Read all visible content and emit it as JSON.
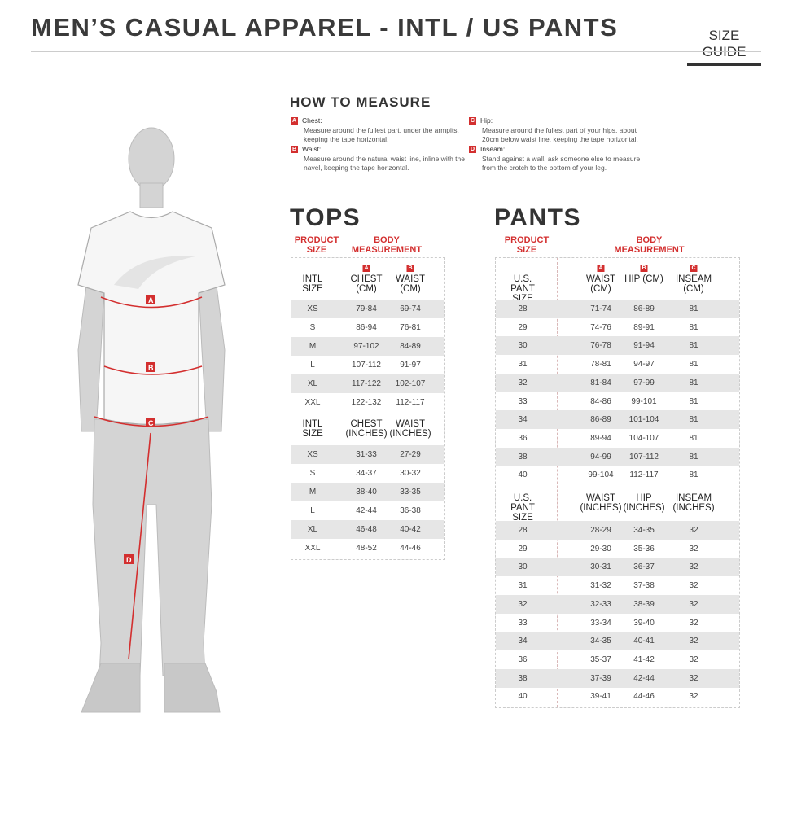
{
  "header": {
    "title": "MEN’S CASUAL APPAREL - INTL / US PANTS",
    "size_guide": "SIZE GUIDE"
  },
  "measure": {
    "title": "HOW TO MEASURE",
    "items": [
      {
        "letter": "A",
        "label": "Chest:",
        "desc": "Measure around the fullest part, under the armpits, keeping the tape horizontal."
      },
      {
        "letter": "B",
        "label": "Waist:",
        "desc": "Measure around the natural waist line, inline with the navel, keeping the tape horizontal."
      },
      {
        "letter": "C",
        "label": "Hip:",
        "desc": "Measure around the fullest part of your hips, about 20cm below waist line, keeping the tape horizontal."
      },
      {
        "letter": "D",
        "label": "Inseam:",
        "desc": "Stand against a wall, ask someone else to measure from the crotch to the bottom of your leg."
      }
    ]
  },
  "colors": {
    "accent": "#d32f2f",
    "row_alt": "#e6e6e6"
  },
  "tops": {
    "title": "TOPS",
    "product_size": "PRODUCT SIZE",
    "body_measurement": "BODY MEASUREMENT",
    "cm": {
      "headers": [
        "INTL SIZE",
        "CHEST (CM)",
        "WAIST (CM)"
      ],
      "letters": [
        "",
        "A",
        "B"
      ],
      "rows": [
        [
          "XS",
          "79-84",
          "69-74"
        ],
        [
          "S",
          "86-94",
          "76-81"
        ],
        [
          "M",
          "97-102",
          "84-89"
        ],
        [
          "L",
          "107-112",
          "91-97"
        ],
        [
          "XL",
          "117-122",
          "102-107"
        ],
        [
          "XXL",
          "122-132",
          "112-117"
        ]
      ]
    },
    "inches": {
      "headers": [
        "INTL SIZE",
        "CHEST (INCHES)",
        "WAIST (INCHES)"
      ],
      "rows": [
        [
          "XS",
          "31-33",
          "27-29"
        ],
        [
          "S",
          "34-37",
          "30-32"
        ],
        [
          "M",
          "38-40",
          "33-35"
        ],
        [
          "L",
          "42-44",
          "36-38"
        ],
        [
          "XL",
          "46-48",
          "40-42"
        ],
        [
          "XXL",
          "48-52",
          "44-46"
        ]
      ]
    }
  },
  "pants": {
    "title": "PANTS",
    "product_size": "PRODUCT SIZE",
    "body_measurement": "BODY MEASUREMENT",
    "cm": {
      "headers": [
        "U.S. PANT SIZE",
        "WAIST (CM)",
        "HIP (CM)",
        "INSEAM (CM)"
      ],
      "letters": [
        "",
        "A",
        "B",
        "C"
      ],
      "rows": [
        [
          "28",
          "71-74",
          "86-89",
          "81"
        ],
        [
          "29",
          "74-76",
          "89-91",
          "81"
        ],
        [
          "30",
          "76-78",
          "91-94",
          "81"
        ],
        [
          "31",
          "78-81",
          "94-97",
          "81"
        ],
        [
          "32",
          "81-84",
          "97-99",
          "81"
        ],
        [
          "33",
          "84-86",
          "99-101",
          "81"
        ],
        [
          "34",
          "86-89",
          "101-104",
          "81"
        ],
        [
          "36",
          "89-94",
          "104-107",
          "81"
        ],
        [
          "38",
          "94-99",
          "107-112",
          "81"
        ],
        [
          "40",
          "99-104",
          "112-117",
          "81"
        ]
      ]
    },
    "inches": {
      "headers": [
        "U.S. PANT SIZE",
        "WAIST (INCHES)",
        "HIP (INCHES)",
        "INSEAM (INCHES)"
      ],
      "rows": [
        [
          "28",
          "28-29",
          "34-35",
          "32"
        ],
        [
          "29",
          "29-30",
          "35-36",
          "32"
        ],
        [
          "30",
          "30-31",
          "36-37",
          "32"
        ],
        [
          "31",
          "31-32",
          "37-38",
          "32"
        ],
        [
          "32",
          "32-33",
          "38-39",
          "32"
        ],
        [
          "33",
          "33-34",
          "39-40",
          "32"
        ],
        [
          "34",
          "34-35",
          "40-41",
          "32"
        ],
        [
          "36",
          "35-37",
          "41-42",
          "32"
        ],
        [
          "38",
          "37-39",
          "42-44",
          "32"
        ],
        [
          "40",
          "39-41",
          "44-46",
          "32"
        ]
      ]
    }
  },
  "figure": {
    "markers": [
      "A",
      "B",
      "C",
      "D"
    ]
  }
}
